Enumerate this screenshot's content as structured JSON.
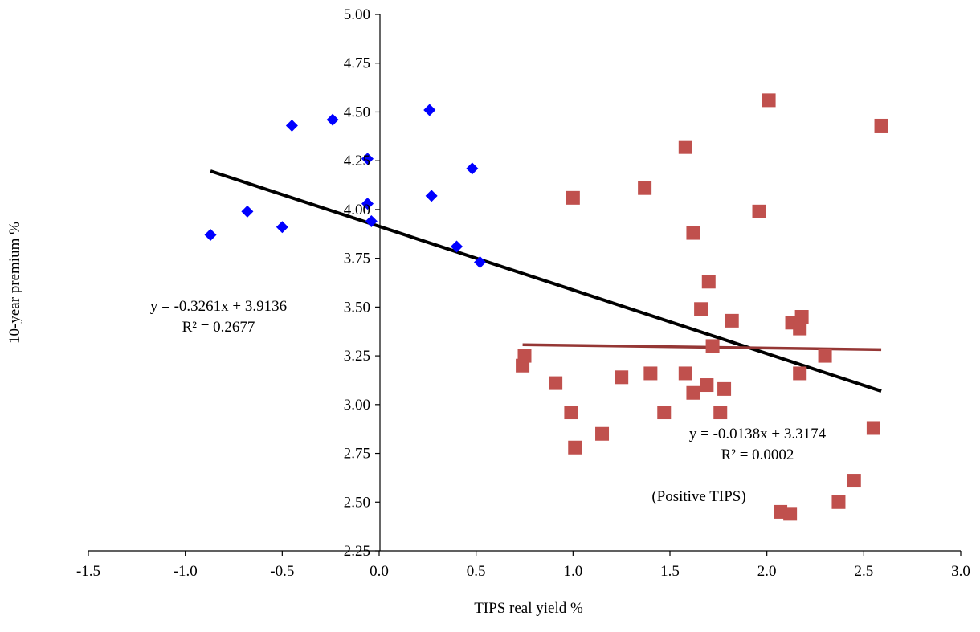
{
  "chart_data": {
    "type": "scatter",
    "title": "",
    "xlabel": "TIPS real yield  %",
    "ylabel": "10-year premium  %",
    "xlim": [
      -1.5,
      3.0
    ],
    "ylim": [
      2.25,
      5.0
    ],
    "x_ticks": [
      -1.5,
      -1.0,
      -0.5,
      0.0,
      0.5,
      1.0,
      1.5,
      2.0,
      2.5,
      3.0
    ],
    "x_tick_labels": [
      "-1.5",
      "-1.0",
      "-0.5",
      "0.0",
      "0.5",
      "1.0",
      "1.5",
      "2.0",
      "2.5",
      "3.0"
    ],
    "y_ticks": [
      2.25,
      2.5,
      2.75,
      3.0,
      3.25,
      3.5,
      3.75,
      4.0,
      4.25,
      4.5,
      4.75,
      5.0
    ],
    "y_tick_labels": [
      "2.25",
      "2.50",
      "2.75",
      "3.00",
      "3.25",
      "3.50",
      "3.75",
      "4.00",
      "4.25",
      "4.50",
      "4.75",
      "5.00"
    ],
    "grid": false,
    "legend": "none",
    "series": [
      {
        "marker": "diamond",
        "color": "#0000ff",
        "points": [
          {
            "x": -0.87,
            "y": 3.87
          },
          {
            "x": -0.68,
            "y": 3.99
          },
          {
            "x": -0.5,
            "y": 3.91
          },
          {
            "x": -0.45,
            "y": 4.43
          },
          {
            "x": -0.24,
            "y": 4.46
          },
          {
            "x": -0.06,
            "y": 4.26
          },
          {
            "x": -0.06,
            "y": 4.03
          },
          {
            "x": -0.04,
            "y": 3.94
          },
          {
            "x": 0.26,
            "y": 4.51
          },
          {
            "x": 0.27,
            "y": 4.07
          },
          {
            "x": 0.48,
            "y": 4.21
          },
          {
            "x": 0.4,
            "y": 3.81
          },
          {
            "x": 0.52,
            "y": 3.73
          }
        ]
      },
      {
        "name": "(Positive TIPS)",
        "marker": "square",
        "color": "#c0504d",
        "points": [
          {
            "x": 0.74,
            "y": 3.2
          },
          {
            "x": 0.75,
            "y": 3.25
          },
          {
            "x": 0.91,
            "y": 3.11
          },
          {
            "x": 0.99,
            "y": 2.96
          },
          {
            "x": 1.0,
            "y": 4.06
          },
          {
            "x": 1.01,
            "y": 2.78
          },
          {
            "x": 1.15,
            "y": 2.85
          },
          {
            "x": 1.25,
            "y": 3.14
          },
          {
            "x": 1.37,
            "y": 4.11
          },
          {
            "x": 1.4,
            "y": 3.16
          },
          {
            "x": 1.47,
            "y": 2.96
          },
          {
            "x": 1.58,
            "y": 3.16
          },
          {
            "x": 1.58,
            "y": 4.32
          },
          {
            "x": 1.62,
            "y": 3.88
          },
          {
            "x": 1.62,
            "y": 3.06
          },
          {
            "x": 1.66,
            "y": 3.49
          },
          {
            "x": 1.69,
            "y": 3.1
          },
          {
            "x": 1.7,
            "y": 3.63
          },
          {
            "x": 1.72,
            "y": 3.3
          },
          {
            "x": 1.76,
            "y": 2.96
          },
          {
            "x": 1.78,
            "y": 3.08
          },
          {
            "x": 1.82,
            "y": 3.43
          },
          {
            "x": 1.96,
            "y": 3.99
          },
          {
            "x": 2.01,
            "y": 4.56
          },
          {
            "x": 2.07,
            "y": 2.45
          },
          {
            "x": 2.12,
            "y": 2.44
          },
          {
            "x": 2.13,
            "y": 3.42
          },
          {
            "x": 2.17,
            "y": 3.39
          },
          {
            "x": 2.18,
            "y": 3.45
          },
          {
            "x": 2.17,
            "y": 3.16
          },
          {
            "x": 2.3,
            "y": 3.25
          },
          {
            "x": 2.37,
            "y": 2.5
          },
          {
            "x": 2.45,
            "y": 2.61
          },
          {
            "x": 2.55,
            "y": 2.88
          },
          {
            "x": 2.59,
            "y": 4.43
          }
        ]
      }
    ],
    "trendlines": [
      {
        "color": "#000000",
        "slope": -0.3261,
        "intercept": 3.9136,
        "x_from": -0.87,
        "x_to": 2.59
      },
      {
        "color": "#953735",
        "slope": -0.0138,
        "intercept": 3.3174,
        "x_from": 0.74,
        "x_to": 2.59
      }
    ],
    "annotations": {
      "eq1_line1": "y = -0.3261x  + 3.9136",
      "eq1_line2": "R² = 0.2677",
      "eq2_line1": "y = -0.0138x  + 3.3174",
      "eq2_line2": "R² = 0.0002",
      "positive_tips": "(Positive TIPS)"
    }
  }
}
